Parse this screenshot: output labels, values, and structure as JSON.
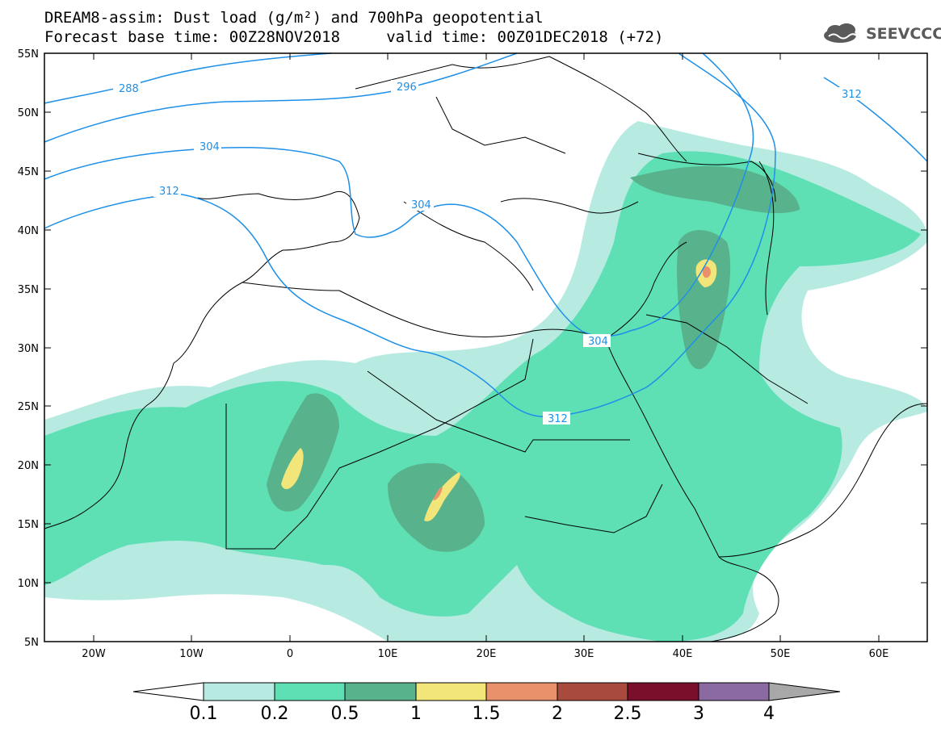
{
  "title_line1": "DREAM8-assim: Dust load (g/m²) and 700hPa geopotential",
  "title_line2": "Forecast base time: 00Z28NOV2018     valid time: 00Z01DEC2018 (+72)",
  "logo_text": "SEEVCCC",
  "logo_icon": "cloud-icon",
  "axes": {
    "lon_ticks": [
      "20W",
      "10W",
      "0",
      "10E",
      "20E",
      "30E",
      "40E",
      "50E",
      "60E"
    ],
    "lat_ticks": [
      "55N",
      "50N",
      "45N",
      "40N",
      "35N",
      "30N",
      "25N",
      "20N",
      "15N",
      "10N",
      "5N"
    ]
  },
  "contour_labels": [
    "288",
    "296",
    "304",
    "312",
    "304",
    "304",
    "312",
    "312"
  ],
  "colorbar": {
    "levels": [
      "0.1",
      "0.2",
      "0.5",
      "1",
      "1.5",
      "2",
      "2.5",
      "3",
      "4"
    ],
    "colors": [
      "#b7ebe2",
      "#5fe0b4",
      "#58b38c",
      "#f2e57a",
      "#e8916a",
      "#a84a3e",
      "#7a0f2c",
      "#8a6aa0"
    ],
    "under_color": "#ffffff",
    "over_color": "#a8a8a8"
  },
  "contour_color": "#1e90e8"
}
